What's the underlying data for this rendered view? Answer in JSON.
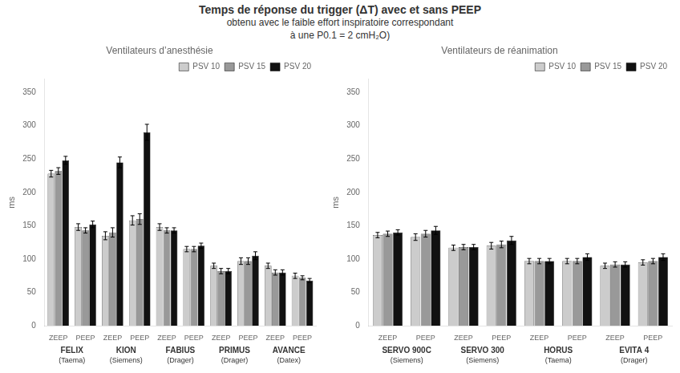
{
  "title": [
    "Temps de réponse du trigger (ΔT) avec et sans PEEP",
    "obtenu avec le faible effort inspiratoire correspondant",
    "à une P0.1 = 2 cmH₂O)"
  ],
  "chart_data": [
    {
      "type": "bar",
      "title": "Ventilateurs d’anesthésie",
      "ylabel": "ms",
      "categories": [
        "ZEEP",
        "PEEP",
        "ZEEP",
        "PEEP",
        "ZEEP",
        "PEEP",
        "ZEEP",
        "PEEP",
        "ZEEP",
        "PEEP"
      ],
      "groups": [
        {
          "name": "FELIX",
          "label": "(Taema)"
        },
        {
          "name": "KION",
          "label": "(Siemens)"
        },
        {
          "name": "FABIUS",
          "label": "(Drager)"
        },
        {
          "name": "PRIMUS",
          "label": "(Drager)"
        },
        {
          "name": "AVANCE",
          "label": "(Datex)"
        }
      ],
      "series": [
        {
          "name": "PSV 10",
          "color": "#cccccc",
          "values": [
            228,
            148,
            135,
            158,
            148,
            115,
            90,
            97,
            90,
            75
          ],
          "errors": [
            5,
            5,
            6,
            7,
            5,
            4,
            4,
            5,
            4,
            4
          ]
        },
        {
          "name": "PSV 15",
          "color": "#999999",
          "values": [
            232,
            143,
            140,
            160,
            143,
            115,
            82,
            97,
            80,
            72
          ],
          "errors": [
            5,
            4,
            7,
            8,
            4,
            4,
            4,
            5,
            4,
            3
          ]
        },
        {
          "name": "PSV 20",
          "color": "#111111",
          "values": [
            248,
            152,
            245,
            290,
            143,
            120,
            82,
            105,
            80,
            68
          ],
          "errors": [
            6,
            5,
            8,
            12,
            4,
            4,
            4,
            6,
            4,
            3
          ]
        }
      ],
      "ylim": [
        0,
        370
      ],
      "yticks": [
        0,
        50,
        100,
        150,
        200,
        250,
        300,
        350
      ],
      "grid": false,
      "legend": "upper right"
    },
    {
      "type": "bar",
      "title": "Ventilateurs de réanimation",
      "ylabel": "ms",
      "categories": [
        "ZEEP",
        "PEEP",
        "ZEEP",
        "PEEP",
        "ZEEP",
        "PEEP",
        "ZEEP",
        "PEEP"
      ],
      "groups": [
        {
          "name": "SERVO 900C",
          "label": "(Siemens)"
        },
        {
          "name": "SERVO 300",
          "label": "(Siemens)"
        },
        {
          "name": "HORUS",
          "label": "(Taema)"
        },
        {
          "name": "EVITA 4",
          "label": "(Drager)"
        }
      ],
      "series": [
        {
          "name": "PSV 10",
          "color": "#cccccc",
          "values": [
            136,
            133,
            117,
            120,
            97,
            97,
            90,
            95
          ],
          "errors": [
            4,
            5,
            4,
            5,
            4,
            4,
            4,
            4
          ]
        },
        {
          "name": "PSV 15",
          "color": "#999999",
          "values": [
            138,
            138,
            118,
            122,
            97,
            97,
            92,
            97
          ],
          "errors": [
            4,
            5,
            4,
            5,
            4,
            4,
            4,
            4
          ]
        },
        {
          "name": "PSV 20",
          "color": "#111111",
          "values": [
            140,
            143,
            118,
            128,
            97,
            103,
            92,
            103
          ],
          "errors": [
            4,
            6,
            4,
            6,
            4,
            5,
            4,
            5
          ]
        }
      ],
      "ylim": [
        0,
        370
      ],
      "yticks": [
        0,
        50,
        100,
        150,
        200,
        250,
        300,
        350
      ],
      "grid": false,
      "legend": "upper right"
    }
  ]
}
